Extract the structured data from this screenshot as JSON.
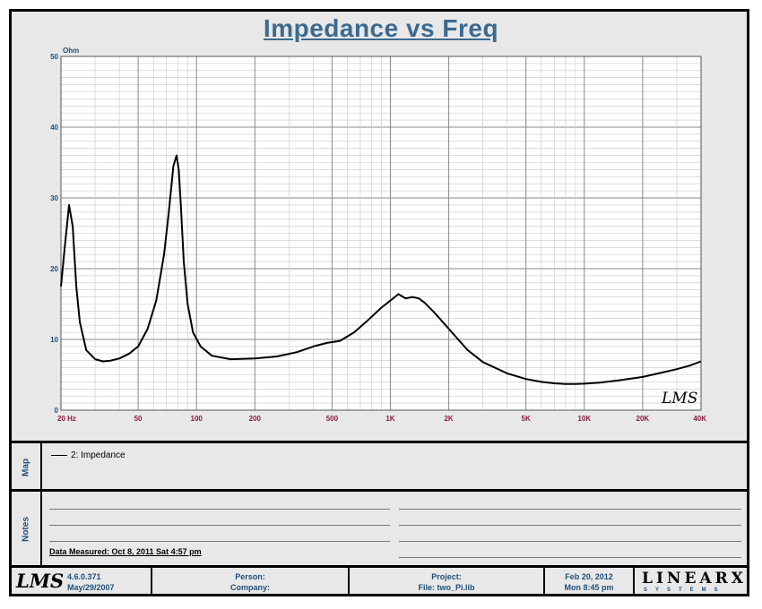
{
  "chart_data": {
    "type": "line",
    "title": "Impedance vs Freq",
    "ylabel": "Ohm",
    "xlabel": "",
    "x_scale": "log",
    "xlim": [
      20,
      40000
    ],
    "ylim": [
      0,
      50
    ],
    "grid": true,
    "xticks": [
      {
        "v": 20,
        "label": "20  Hz"
      },
      {
        "v": 50,
        "label": "50"
      },
      {
        "v": 100,
        "label": "100"
      },
      {
        "v": 200,
        "label": "200"
      },
      {
        "v": 500,
        "label": "500"
      },
      {
        "v": 1000,
        "label": "1K"
      },
      {
        "v": 2000,
        "label": "2K"
      },
      {
        "v": 5000,
        "label": "5K"
      },
      {
        "v": 10000,
        "label": "10K"
      },
      {
        "v": 20000,
        "label": "20K"
      },
      {
        "v": 40000,
        "label": "40K"
      }
    ],
    "yticks": [
      {
        "v": 0,
        "label": "0"
      },
      {
        "v": 10,
        "label": "10"
      },
      {
        "v": 20,
        "label": "20"
      },
      {
        "v": 30,
        "label": "30"
      },
      {
        "v": 40,
        "label": "40"
      },
      {
        "v": 50,
        "label": "50"
      }
    ],
    "series": [
      {
        "name": "2: Impedance",
        "color": "#000000",
        "x": [
          20,
          21,
          22,
          23,
          24,
          25,
          27,
          30,
          33,
          36,
          40,
          45,
          50,
          56,
          62,
          68,
          72,
          76,
          79,
          81,
          83,
          86,
          90,
          96,
          105,
          120,
          150,
          200,
          260,
          330,
          400,
          470,
          550,
          650,
          750,
          900,
          1000,
          1100,
          1200,
          1300,
          1400,
          1500,
          1700,
          2000,
          2500,
          3000,
          4000,
          5000,
          6000,
          7000,
          8000,
          9000,
          10000,
          12000,
          15000,
          20000,
          25000,
          30000,
          35000,
          40000
        ],
        "y": [
          17.5,
          23.5,
          29.0,
          26.0,
          17.5,
          12.5,
          8.5,
          7.2,
          6.9,
          7.0,
          7.3,
          8.0,
          9.0,
          11.5,
          15.5,
          22.0,
          28.0,
          34.5,
          36.0,
          34.0,
          29.0,
          21.0,
          15.0,
          11.0,
          9.0,
          7.7,
          7.2,
          7.3,
          7.6,
          8.2,
          9.0,
          9.5,
          9.8,
          11.0,
          12.5,
          14.5,
          15.5,
          16.4,
          15.8,
          16.0,
          15.8,
          15.2,
          13.7,
          11.5,
          8.5,
          6.8,
          5.2,
          4.4,
          4.0,
          3.8,
          3.7,
          3.7,
          3.75,
          3.9,
          4.2,
          4.7,
          5.3,
          5.8,
          6.3,
          6.9
        ]
      }
    ]
  },
  "watermark": "LMS",
  "map": {
    "section_label": "Map",
    "legend_item": "2: Impedance"
  },
  "notes": {
    "section_label": "Notes",
    "measured": "Data Measured: Oct  8, 2011  Sat  4:57 pm"
  },
  "footer": {
    "logo": "LMS",
    "version": "4.6.0.371",
    "version_date": "May/29/2007",
    "person": "Person:",
    "company": "Company:",
    "project": "Project:",
    "file": "File: two_Pi.lib",
    "date": "Feb 20, 2012",
    "time": "Mon  8:45 pm",
    "brand": "LINEARX",
    "brand_sub": "SYSTEMS"
  },
  "colors": {
    "title": "#3b6a8f",
    "y_tick": "#1f4f7a",
    "x_tick": "#8b1a3a",
    "curve": "#000000",
    "plot_bg": "#ffffff"
  }
}
